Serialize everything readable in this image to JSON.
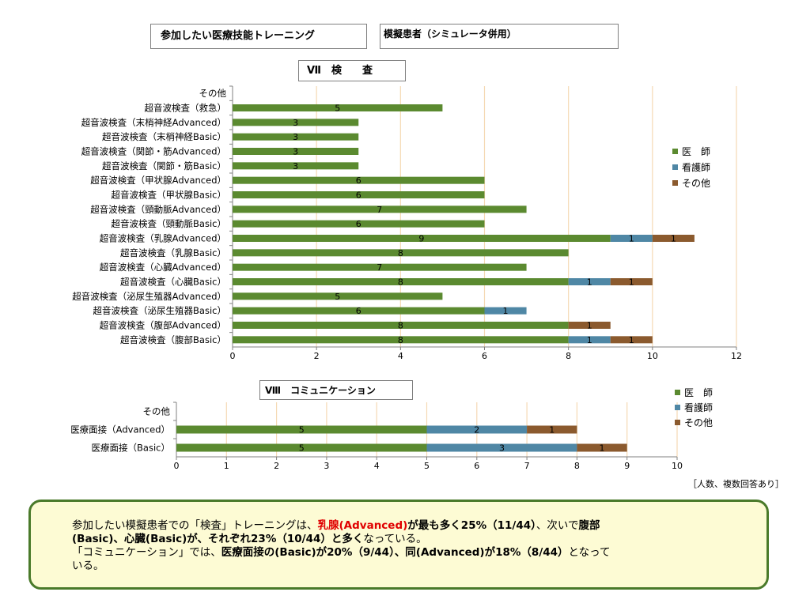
{
  "header": {
    "title": "参加したい医療技能トレーニング",
    "subtitle": "模擬患者（シミュレータ併用）"
  },
  "colors": {
    "doctor": "#5b8a30",
    "nurse": "#4f87a5",
    "other": "#8b5a2e",
    "grid": "#f5d9b4"
  },
  "chart_data": [
    {
      "type": "bar",
      "orientation": "horizontal",
      "stacked": true,
      "title": "Ⅶ　検　　査",
      "categories": [
        "その他",
        "超音波検査（救急）",
        "超音波検査（末梢神経Advanced）",
        "超音波検査（末梢神経Basic）",
        "超音波検査（関節・筋Advanced）",
        "超音波検査（関節・筋Basic）",
        "超音波検査（甲状腺Advanced）",
        "超音波検査（甲状腺Basic）",
        "超音波検査（頸動脈Advanced）",
        "超音波検査（頸動脈Basic）",
        "超音波検査（乳腺Advanced）",
        "超音波検査（乳腺Basic）",
        "超音波検査（心臓Advanced）",
        "超音波検査（心臓Basic）",
        "超音波検査（泌尿生殖器Advanced）",
        "超音波検査（泌尿生殖器Basic）",
        "超音波検査（腹部Advanced）",
        "超音波検査（腹部Basic）"
      ],
      "series": [
        {
          "name": "医　師",
          "values": [
            0,
            5,
            3,
            3,
            3,
            3,
            6,
            6,
            7,
            6,
            9,
            8,
            7,
            8,
            5,
            6,
            8,
            8
          ]
        },
        {
          "name": "看護師",
          "values": [
            0,
            0,
            0,
            0,
            0,
            0,
            0,
            0,
            0,
            0,
            1,
            0,
            0,
            1,
            0,
            1,
            0,
            1
          ]
        },
        {
          "name": "その他",
          "values": [
            0,
            0,
            0,
            0,
            0,
            0,
            0,
            0,
            0,
            0,
            1,
            0,
            0,
            1,
            0,
            0,
            1,
            1
          ]
        }
      ],
      "xlim": [
        0,
        12
      ],
      "xticks": [
        "0",
        "2",
        "4",
        "6",
        "8",
        "10",
        "12"
      ],
      "legend": "right",
      "grid": true
    },
    {
      "type": "bar",
      "orientation": "horizontal",
      "stacked": true,
      "title": "Ⅷ　コミュニケーション",
      "categories": [
        "その他",
        "医療面接（Advanced）",
        "医療面接（Basic）"
      ],
      "series": [
        {
          "name": "医　師",
          "values": [
            0,
            5,
            5
          ]
        },
        {
          "name": "看護師",
          "values": [
            0,
            2,
            3
          ]
        },
        {
          "name": "その他",
          "values": [
            0,
            1,
            1
          ]
        }
      ],
      "xlim": [
        0,
        10
      ],
      "xticks": [
        "0",
        "1",
        "2",
        "3",
        "4",
        "5",
        "6",
        "7",
        "8",
        "9",
        "10"
      ],
      "legend": "top-right",
      "grid": true
    }
  ],
  "unit_note": "［人数、複数回答あり］",
  "note": {
    "l1a": "参加したい模擬患者での「検査」トレーニングは、",
    "l1b": "乳腺(Advanced)",
    "l1c": "が最も多く25%（11/44）",
    "l1d": "、次いで",
    "l1e": "腹部",
    "l2a": "(Basic)、心臓(Basic)が、それぞれ23%（10/44）と多く",
    "l2b": "なっている。",
    "l3a": "「コミュニケーション」では、",
    "l3b": "医療面接の(Basic)が20%（9/44）、同(Advanced)が18%（8/44）",
    "l3c": "となって",
    "l4": "いる。"
  }
}
